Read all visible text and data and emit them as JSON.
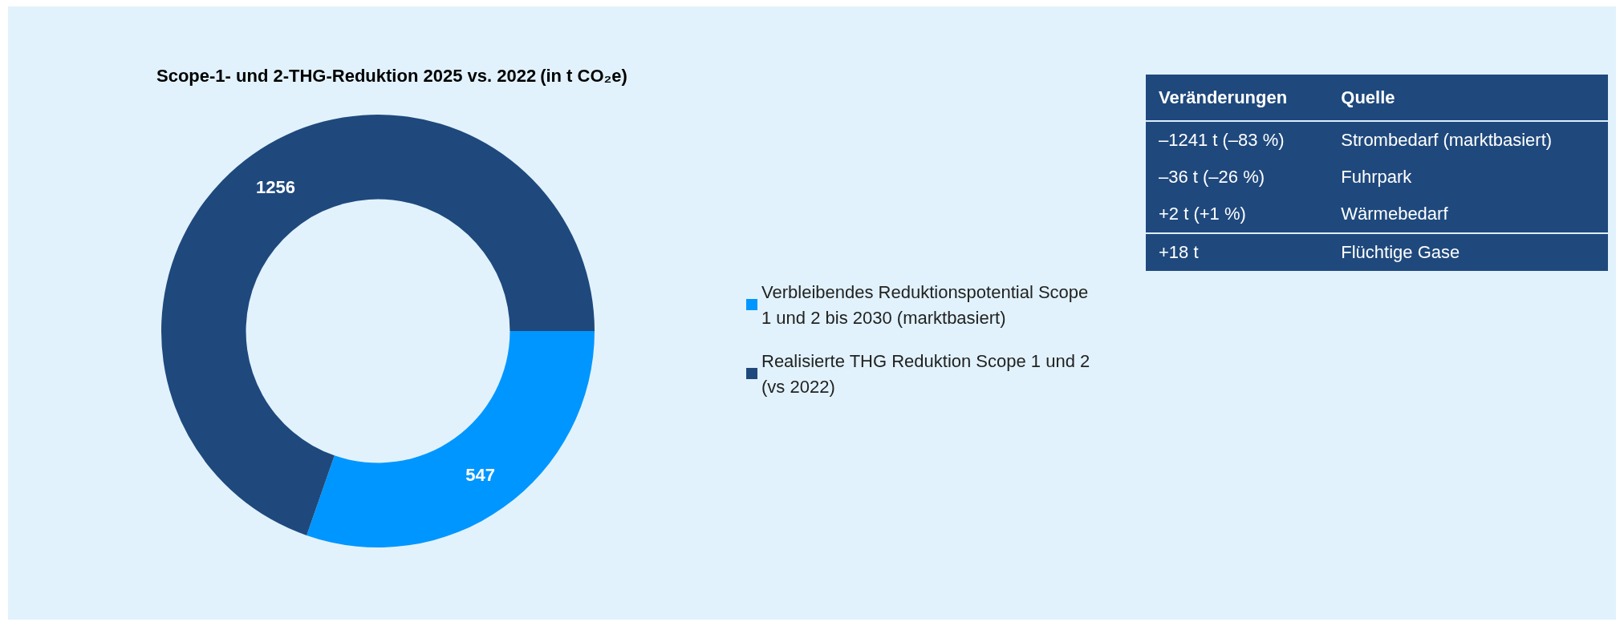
{
  "chart_data": [
    {
      "type": "donut",
      "title": "Scope-1- und 2-THG-Reduktion 2025 vs. 2022",
      "subtitle": "(in t CO₂e)",
      "categories": [
        "Verbleibendes Reduktionspotential Scope 1 und 2 bis 2030 (marktbasiert)",
        "Realisierte THG Reduktion Scope 1 und 2 (vs 2022)"
      ],
      "values": [
        547,
        1256
      ],
      "colors": [
        "#0096ff",
        "#1f497d"
      ],
      "data_labels": true,
      "legend": "right"
    },
    {
      "type": "other",
      "annotations": [
        "Veränderungen",
        "Quelle",
        "–1241 t (–83 %)",
        "Strombedarf (marktbasiert)",
        "–36 t (–26 %)",
        "Fuhrpark",
        "+2 t (+1 %)",
        "Wärmebedarf",
        "+18 t",
        "Flüchtige Gase"
      ]
    }
  ]
}
